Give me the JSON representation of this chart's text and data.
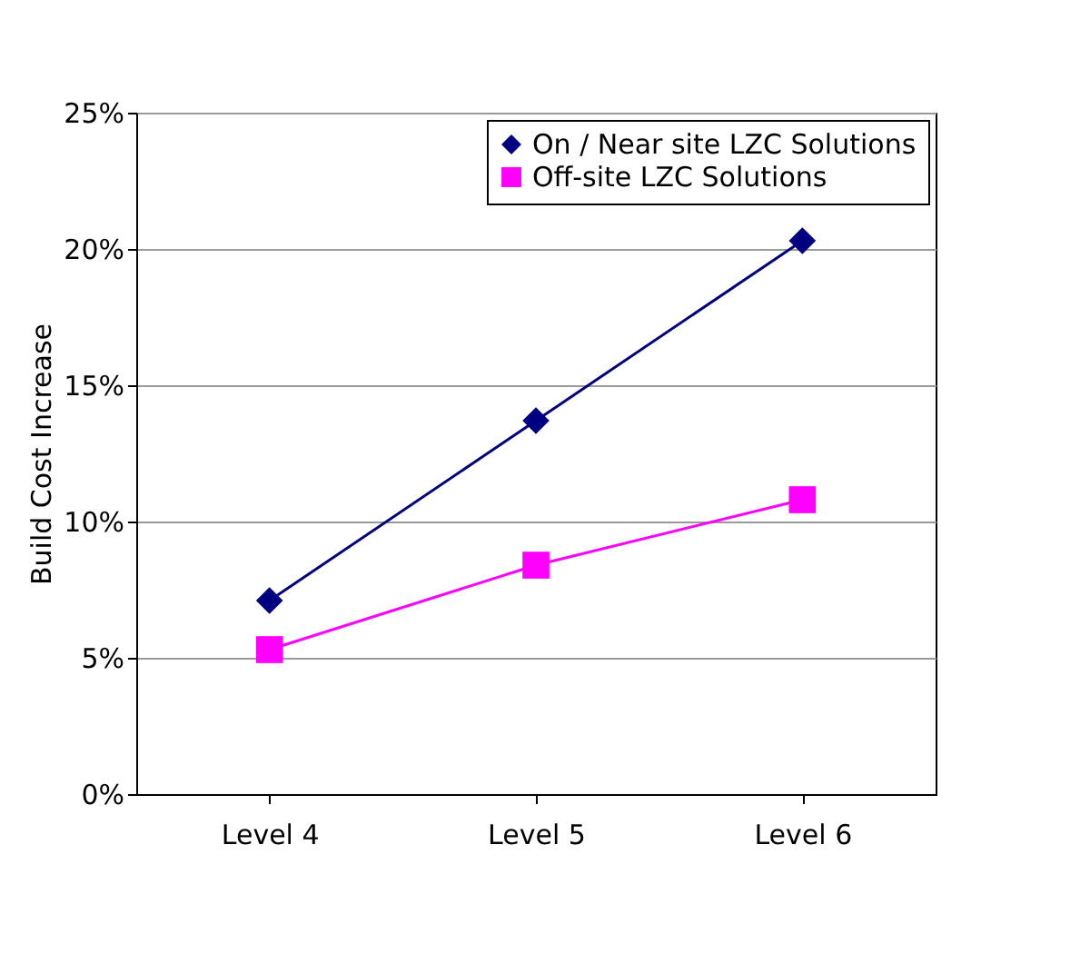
{
  "chart_data": {
    "type": "line",
    "ylabel": "Build Cost Increase",
    "categories": [
      "Level 4",
      "Level 5",
      "Level 6"
    ],
    "series": [
      {
        "name": "On / Near site LZC Solutions",
        "color": "#000080",
        "marker": "diamond",
        "values": [
          7.1,
          13.7,
          20.3
        ]
      },
      {
        "name": "Off-site LZC Solutions",
        "color": "#ff00ff",
        "marker": "square",
        "values": [
          5.3,
          8.4,
          10.8
        ]
      }
    ],
    "ylim": [
      0,
      25
    ],
    "yticks": [
      {
        "value": 0,
        "label": "0%"
      },
      {
        "value": 5,
        "label": "5%"
      },
      {
        "value": 10,
        "label": "10%"
      },
      {
        "value": 15,
        "label": "15%"
      },
      {
        "value": 20,
        "label": "20%"
      },
      {
        "value": 25,
        "label": "25%"
      }
    ],
    "grid": "y",
    "legend": "top right",
    "line_style": "solid"
  }
}
